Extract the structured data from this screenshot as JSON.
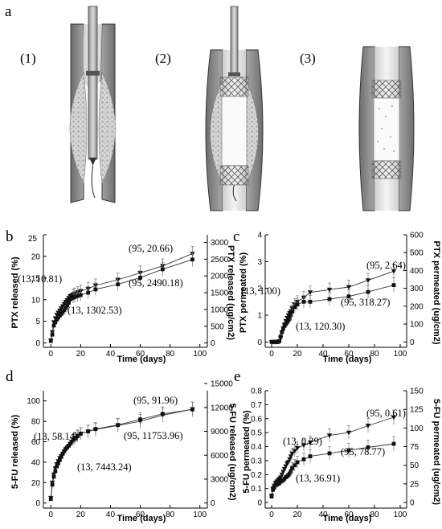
{
  "figure_label": "a",
  "panel_a": {
    "steps": [
      "(1)",
      "(2)",
      "(3)"
    ]
  },
  "chart_data": [
    {
      "panel": "b",
      "type": "line",
      "xlabel": "Time (days)",
      "xlim": [
        -5,
        105
      ],
      "xticks": [
        0,
        20,
        40,
        60,
        80,
        100
      ],
      "ylabel": "PTX released (%)",
      "ylim": [
        -1,
        25
      ],
      "yticks": [
        0,
        5,
        10,
        15,
        20,
        25
      ],
      "y2label": "PTX released (ug/cm2)",
      "y2lim": [
        -129.17,
        3229.17
      ],
      "y2ticks": [
        0,
        500,
        1000,
        1500,
        2000,
        2500,
        3000
      ],
      "series": [
        {
          "marker": "triangle-down",
          "axis": "left",
          "x": [
            0,
            1,
            2,
            3,
            4,
            5,
            6,
            7,
            8,
            9,
            10,
            11,
            12,
            13,
            14,
            15,
            16,
            18,
            20,
            25,
            30,
            45,
            60,
            75,
            95
          ],
          "y": [
            0.6,
            2.5,
            4.8,
            5.7,
            6.5,
            7.0,
            7.5,
            8.0,
            8.5,
            9.0,
            9.5,
            9.9,
            10.4,
            10.81,
            11.0,
            11.2,
            11.4,
            11.7,
            12.0,
            12.5,
            13.3,
            14.6,
            16.2,
            17.8,
            20.66
          ]
        },
        {
          "marker": "square",
          "axis": "right",
          "x": [
            0,
            1,
            2,
            3,
            4,
            5,
            6,
            7,
            8,
            9,
            10,
            11,
            12,
            13,
            14,
            15,
            16,
            18,
            20,
            25,
            30,
            45,
            60,
            75,
            95
          ],
          "y": [
            60,
            250,
            520,
            620,
            700,
            760,
            820,
            870,
            920,
            980,
            1050,
            1120,
            1200,
            1302.53,
            1330,
            1350,
            1370,
            1400,
            1430,
            1500,
            1600,
            1750,
            1950,
            2200,
            2490.18
          ]
        }
      ],
      "annotations": [
        "(13, 10.81)",
        "(13, 1302.53)",
        "(95, 20.66)",
        "(95, 2490.18)"
      ]
    },
    {
      "panel": "c",
      "type": "line",
      "xlabel": "Time (days)",
      "xlim": [
        -5,
        105
      ],
      "xticks": [
        0,
        20,
        40,
        60,
        80,
        100
      ],
      "ylabel": "PTX permeated (%)",
      "ylim": [
        -0.2,
        4
      ],
      "yticks": [
        0,
        1,
        2,
        3,
        4
      ],
      "y2label": "PTX permeated (ug/cm2)",
      "y2lim": [
        -30,
        600
      ],
      "y2ticks": [
        0,
        100,
        200,
        300,
        400,
        500,
        600
      ],
      "series": [
        {
          "marker": "triangle-down",
          "axis": "left",
          "x": [
            0,
            1,
            2,
            3,
            4,
            5,
            6,
            7,
            8,
            9,
            10,
            11,
            12,
            13,
            14,
            15,
            16,
            18,
            20,
            25,
            30,
            45,
            60,
            75,
            95
          ],
          "y": [
            0,
            0,
            0,
            0,
            0,
            0,
            0.02,
            0.15,
            0.35,
            0.5,
            0.65,
            0.78,
            0.9,
            1.0,
            1.08,
            1.15,
            1.25,
            1.4,
            1.5,
            1.65,
            1.85,
            1.95,
            2.05,
            2.3,
            2.64
          ]
        },
        {
          "marker": "square",
          "axis": "right",
          "x": [
            0,
            1,
            2,
            3,
            4,
            5,
            6,
            7,
            8,
            9,
            10,
            11,
            12,
            13,
            14,
            15,
            16,
            18,
            20,
            25,
            30,
            45,
            60,
            75,
            95
          ],
          "y": [
            0,
            0,
            0,
            0,
            0,
            0,
            5,
            30,
            55,
            75,
            90,
            100,
            110,
            120.3,
            130,
            150,
            170,
            195,
            210,
            225,
            225,
            240,
            255,
            280,
            318.27
          ]
        }
      ],
      "annotations": [
        "(13, 1.00)",
        "(13, 120.30)",
        "(95, 2.64)",
        "(95, 318.27)"
      ]
    },
    {
      "panel": "d",
      "type": "line",
      "xlabel": "Time (days)",
      "xlim": [
        -5,
        105
      ],
      "xticks": [
        0,
        20,
        40,
        60,
        80,
        100
      ],
      "ylabel": "5-FU released (%)",
      "ylim": [
        -5,
        110
      ],
      "yticks": [
        0,
        20,
        40,
        60,
        80,
        100
      ],
      "y2label": "5-FU released (ug/cm2)",
      "y2lim": [
        -641.2,
        14106.5
      ],
      "y2ticks": [
        0,
        3000,
        6000,
        9000,
        12000,
        15000
      ],
      "series": [
        {
          "marker": "triangle-down",
          "axis": "left",
          "x": [
            0,
            1,
            2,
            3,
            4,
            5,
            6,
            7,
            8,
            9,
            10,
            11,
            12,
            13,
            14,
            15,
            16,
            18,
            20,
            25,
            30,
            45,
            60,
            75,
            95
          ],
          "y": [
            5,
            20,
            28,
            34,
            38,
            41,
            44,
            46,
            48,
            50,
            52,
            54,
            56,
            58.14,
            60,
            62,
            64,
            66,
            68,
            70,
            72,
            76,
            80,
            86,
            91.96
          ]
        },
        {
          "marker": "square",
          "axis": "right",
          "x": [
            0,
            1,
            2,
            3,
            4,
            5,
            6,
            7,
            8,
            9,
            10,
            11,
            12,
            13,
            14,
            15,
            16,
            18,
            20,
            25,
            30,
            45,
            60,
            75,
            95
          ],
          "y": [
            500,
            2300,
            3300,
            4000,
            4600,
            5000,
            5400,
            5800,
            6200,
            6500,
            6800,
            7000,
            7200,
            7443.24,
            7700,
            7900,
            8100,
            8400,
            8700,
            9000,
            9300,
            9800,
            10500,
            11200,
            11753.96
          ]
        }
      ],
      "annotations": [
        "(13, 58.14)",
        "(13, 7443.24)",
        "(95, 91.96)",
        "(95, 11753.96)"
      ]
    },
    {
      "panel": "e",
      "type": "line",
      "xlabel": "Time (days)",
      "xlim": [
        -5,
        105
      ],
      "xticks": [
        0,
        20,
        40,
        60,
        80,
        100
      ],
      "ylabel": "5-FU permeated (%)",
      "ylim": [
        -0.04,
        0.8
      ],
      "yticks": [
        0.0,
        0.1,
        0.2,
        0.3,
        0.4,
        0.5,
        0.6,
        0.7,
        0.8
      ],
      "y2label": "5-FU permeated (ug/cm2)",
      "y2lim": [
        -7.5,
        150
      ],
      "y2ticks": [
        0,
        25,
        50,
        75,
        100,
        125,
        150
      ],
      "series": [
        {
          "marker": "triangle-down",
          "axis": "left",
          "x": [
            0,
            1,
            2,
            3,
            4,
            5,
            6,
            7,
            8,
            9,
            10,
            11,
            12,
            13,
            14,
            15,
            16,
            18,
            20,
            25,
            30,
            45,
            60,
            75,
            95
          ],
          "y": [
            0.05,
            0.1,
            0.12,
            0.14,
            0.15,
            0.16,
            0.17,
            0.18,
            0.2,
            0.22,
            0.24,
            0.26,
            0.28,
            0.29,
            0.31,
            0.33,
            0.35,
            0.37,
            0.39,
            0.41,
            0.43,
            0.48,
            0.5,
            0.55,
            0.61
          ]
        },
        {
          "marker": "square",
          "axis": "right",
          "x": [
            0,
            1,
            2,
            3,
            4,
            5,
            6,
            7,
            8,
            9,
            10,
            11,
            12,
            13,
            14,
            15,
            16,
            18,
            20,
            25,
            30,
            45,
            60,
            75,
            95
          ],
          "y": [
            8,
            17,
            20,
            23,
            24,
            25,
            26,
            28,
            29,
            30,
            32,
            34,
            35,
            36.91,
            39,
            42,
            46,
            50,
            54,
            58,
            62,
            66,
            70,
            74,
            78.77
          ]
        }
      ],
      "annotations": [
        "(13, 0.29)",
        "(13, 36.91)",
        "(95, 0.61)",
        "(95, 78.77)"
      ]
    }
  ]
}
